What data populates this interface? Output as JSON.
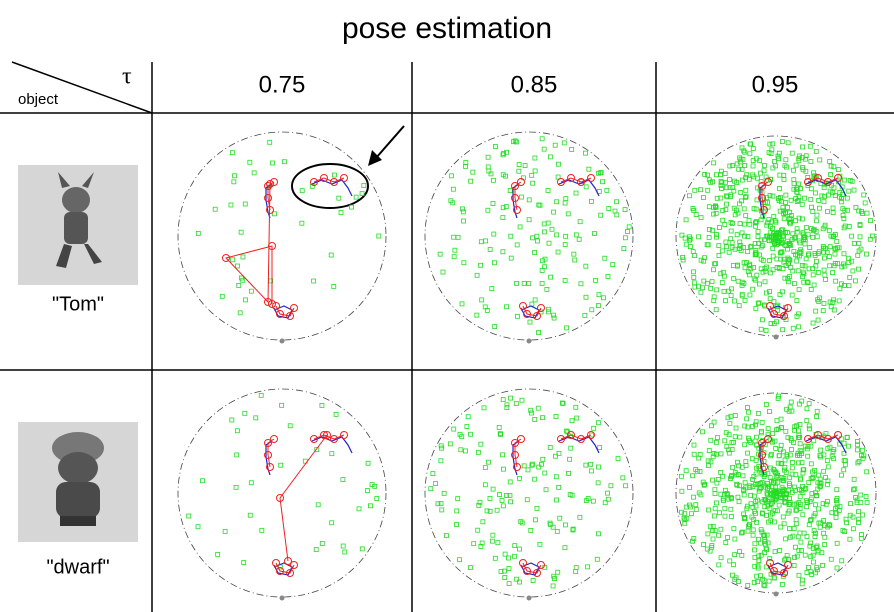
{
  "title": "pose estimation",
  "header": {
    "tau": "τ",
    "object": "object",
    "columns": [
      "0.75",
      "0.85",
      "0.95"
    ]
  },
  "rows": [
    {
      "label": "\"Tom\""
    },
    {
      "label": "\"dwarf\""
    }
  ]
}
